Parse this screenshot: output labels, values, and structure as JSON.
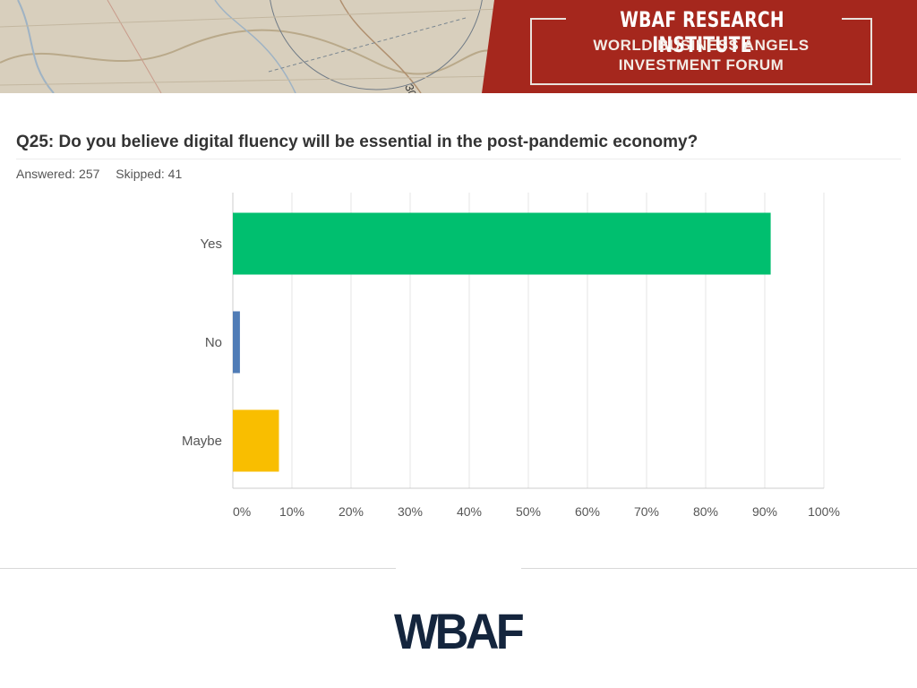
{
  "banner": {
    "title": "WBAF RESEARCH INSTITUTE",
    "subtitle_line1": "WORLD BUSINESS ANGELS",
    "subtitle_line2": "INVESTMENT FORUM",
    "map_label": "30"
  },
  "question": {
    "text": "Q25: Do you believe digital fluency will be essential in the post-pandemic economy?"
  },
  "stats": {
    "answered": "Answered: 257",
    "skipped": "Skipped: 41"
  },
  "colors": {
    "banner_red": "#a5271d",
    "yes": "#00bf6f",
    "no": "#507cb6",
    "maybe": "#f9be00",
    "logo": "#14253d"
  },
  "chart_data": {
    "type": "bar",
    "orientation": "horizontal",
    "categories": [
      "Yes",
      "No",
      "Maybe"
    ],
    "values": [
      91,
      1.2,
      7.8
    ],
    "unit": "%",
    "xlim": [
      0,
      100
    ],
    "ticks": [
      "0%",
      "10%",
      "20%",
      "30%",
      "40%",
      "50%",
      "60%",
      "70%",
      "80%",
      "90%",
      "100%"
    ],
    "bar_colors": [
      "#00bf6f",
      "#507cb6",
      "#f9be00"
    ],
    "grid": true,
    "legend": "none"
  },
  "footer": {
    "logo_text": "WBAF"
  }
}
